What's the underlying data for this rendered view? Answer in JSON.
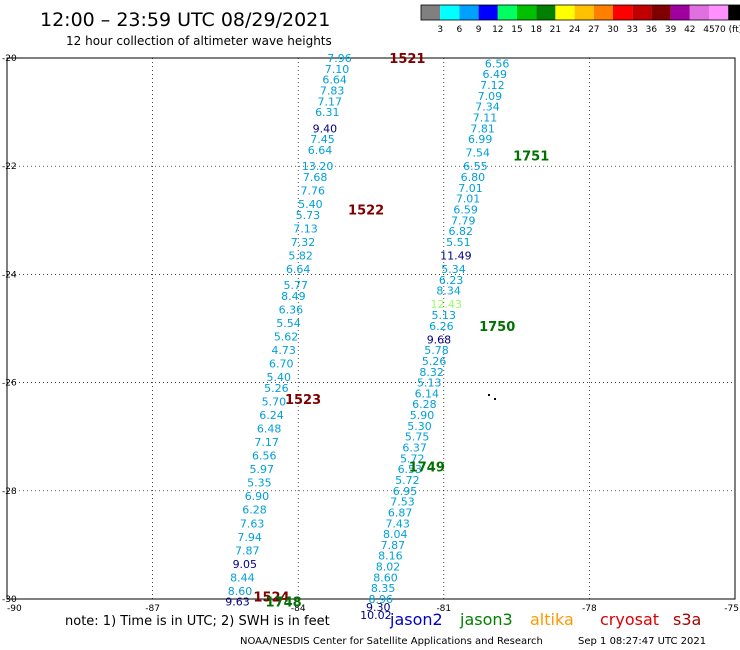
{
  "header": {
    "title": "12:00 – 23:59 UTC 08/29/2021",
    "subtitle": "12 hour collection of altimeter wave heights"
  },
  "colorbar": {
    "labels": [
      "3",
      "6",
      "9",
      "12",
      "15",
      "18",
      "21",
      "24",
      "27",
      "30",
      "33",
      "36",
      "39",
      "42",
      "45",
      "70 (ft)"
    ],
    "colors": [
      "#808080",
      "#00ffff",
      "#00a0ff",
      "#0000ff",
      "#00ff60",
      "#00c000",
      "#008000",
      "#ffff00",
      "#ffc000",
      "#ff8000",
      "#ff0000",
      "#c00000",
      "#800000",
      "#a000a0",
      "#e070e0",
      "#ff90ff",
      "#000000"
    ]
  },
  "footer": {
    "note": "note: 1) Time is in UTC; 2) SWH is in feet",
    "satellites": [
      {
        "name": "jason2",
        "color": "#0000cc"
      },
      {
        "name": "jason3",
        "color": "#008000"
      },
      {
        "name": "altika",
        "color": "#ff9900"
      },
      {
        "name": "cryosat",
        "color": "#dd0000"
      },
      {
        "name": "s3a",
        "color": "#aa0000"
      }
    ],
    "credit": "NOAA/NESDIS Center for Satellite Applications and Research",
    "timestamp": "Sep  1 08:27:47 UTC 2021"
  },
  "chart_data": {
    "type": "scatter",
    "xlim": [
      -90,
      -75
    ],
    "ylim": [
      -30,
      -20
    ],
    "xticks": [
      "-90",
      "-87",
      "-84",
      "-81",
      "-78",
      "-75"
    ],
    "yticks": [
      "-20",
      "-22",
      "-24",
      "-26",
      "-28",
      "-30"
    ],
    "grid": true,
    "track_a": {
      "color": "#00a0d8",
      "points": [
        [
          -83.15,
          -20.0,
          "7.96"
        ],
        [
          -83.2,
          -20.2,
          "7.10"
        ],
        [
          -83.25,
          -20.4,
          "6.64"
        ],
        [
          -83.3,
          -20.6,
          "7.83"
        ],
        [
          -83.35,
          -20.8,
          "7.17"
        ],
        [
          -83.4,
          -21.0,
          "6.31"
        ],
        [
          -83.45,
          -21.3,
          "9.40"
        ],
        [
          -83.5,
          -21.5,
          "7.45"
        ],
        [
          -83.55,
          -21.7,
          "6.64"
        ],
        [
          -83.6,
          -22.0,
          "13.20"
        ],
        [
          -83.65,
          -22.2,
          "7.68"
        ],
        [
          -83.7,
          -22.45,
          "7.76"
        ],
        [
          -83.75,
          -22.7,
          "5.40"
        ],
        [
          -83.8,
          -22.9,
          "5.73"
        ],
        [
          -83.85,
          -23.15,
          "7.13"
        ],
        [
          -83.9,
          -23.4,
          "7.32"
        ],
        [
          -83.95,
          -23.65,
          "5.82"
        ],
        [
          -84.0,
          -23.9,
          "6.64"
        ],
        [
          -84.05,
          -24.2,
          "5.77"
        ],
        [
          -84.1,
          -24.4,
          "8.49"
        ],
        [
          -84.15,
          -24.65,
          "6.36"
        ],
        [
          -84.2,
          -24.9,
          "5.54"
        ],
        [
          -84.25,
          -25.15,
          "5.62"
        ],
        [
          -84.3,
          -25.4,
          "4.73"
        ],
        [
          -84.35,
          -25.65,
          "6.70"
        ],
        [
          -84.4,
          -25.9,
          "5.40"
        ],
        [
          -84.45,
          -26.1,
          "5.26"
        ],
        [
          -84.5,
          -26.35,
          "5.70"
        ],
        [
          -84.55,
          -26.6,
          "6.24"
        ],
        [
          -84.6,
          -26.85,
          "6.48"
        ],
        [
          -84.65,
          -27.1,
          "7.17"
        ],
        [
          -84.7,
          -27.35,
          "6.56"
        ],
        [
          -84.75,
          -27.6,
          "5.97"
        ],
        [
          -84.8,
          -27.85,
          "5.35"
        ],
        [
          -84.85,
          -28.1,
          "6.90"
        ],
        [
          -84.9,
          -28.35,
          "6.28"
        ],
        [
          -84.95,
          -28.6,
          "7.63"
        ],
        [
          -85.0,
          -28.85,
          "7.94"
        ],
        [
          -85.05,
          -29.1,
          "7.87"
        ],
        [
          -85.1,
          -29.35,
          "9.05"
        ],
        [
          -85.15,
          -29.6,
          "8.44"
        ],
        [
          -85.2,
          -29.85,
          "8.60"
        ],
        [
          -85.25,
          -30.05,
          "9.63"
        ]
      ],
      "darkIndex": [
        6,
        39,
        42
      ],
      "labels": [
        {
          "text": "1521",
          "x": -81.75,
          "y": -20.0,
          "color": "#800000"
        },
        {
          "text": "1522",
          "x": -82.6,
          "y": -22.8,
          "color": "#800000"
        },
        {
          "text": "1523",
          "x": -83.9,
          "y": -26.3,
          "color": "#800000"
        },
        {
          "text": "1524",
          "x": -84.55,
          "y": -29.95,
          "color": "#800000"
        }
      ]
    },
    "track_b": {
      "color": "#00a0d8",
      "points": [
        [
          -79.9,
          -20.1,
          "6.56"
        ],
        [
          -79.95,
          -20.3,
          "6.49"
        ],
        [
          -80.0,
          -20.5,
          "7.12"
        ],
        [
          -80.05,
          -20.7,
          "7.09"
        ],
        [
          -80.1,
          -20.9,
          "7.34"
        ],
        [
          -80.15,
          -21.1,
          "7.11"
        ],
        [
          -80.2,
          -21.3,
          "7.81"
        ],
        [
          -80.25,
          -21.5,
          "6.99"
        ],
        [
          -80.3,
          -21.75,
          "7.54"
        ],
        [
          -80.35,
          -22.0,
          "6.55"
        ],
        [
          -80.4,
          -22.2,
          "6.80"
        ],
        [
          -80.45,
          -22.4,
          "7.01"
        ],
        [
          -80.5,
          -22.6,
          "7.01"
        ],
        [
          -80.55,
          -22.8,
          "6.59"
        ],
        [
          -80.6,
          -23.0,
          "7.79"
        ],
        [
          -80.65,
          -23.2,
          "6.82"
        ],
        [
          -80.7,
          -23.4,
          "5.51"
        ],
        [
          -80.75,
          -23.65,
          "11.49"
        ],
        [
          -80.8,
          -23.9,
          "5.34"
        ],
        [
          -80.85,
          -24.1,
          "6.23"
        ],
        [
          -80.9,
          -24.3,
          "8.34"
        ],
        [
          -80.95,
          -24.55,
          "12.43"
        ],
        [
          -81.0,
          -24.75,
          "5.13"
        ],
        [
          -81.05,
          -24.95,
          "6.26"
        ],
        [
          -81.1,
          -25.2,
          "9.68"
        ],
        [
          -81.15,
          -25.4,
          "5.78"
        ],
        [
          -81.2,
          -25.6,
          "5.26"
        ],
        [
          -81.25,
          -25.8,
          "8.32"
        ],
        [
          -81.3,
          -26.0,
          "5.13"
        ],
        [
          -81.35,
          -26.2,
          "6.14"
        ],
        [
          -81.4,
          -26.4,
          "6.28"
        ],
        [
          -81.45,
          -26.6,
          "5.90"
        ],
        [
          -81.5,
          -26.8,
          "5.30"
        ],
        [
          -81.55,
          -27.0,
          "5.75"
        ],
        [
          -81.6,
          -27.2,
          "6.37"
        ],
        [
          -81.65,
          -27.4,
          "5.72"
        ],
        [
          -81.7,
          -27.6,
          "6.53"
        ],
        [
          -81.75,
          -27.8,
          "5.72"
        ],
        [
          -81.8,
          -28.0,
          "6.95"
        ],
        [
          -81.85,
          -28.2,
          "7.53"
        ],
        [
          -81.9,
          -28.4,
          "6.87"
        ],
        [
          -81.95,
          -28.6,
          "7.43"
        ],
        [
          -82.0,
          -28.8,
          "8.04"
        ],
        [
          -82.05,
          -29.0,
          "7.87"
        ],
        [
          -82.1,
          -29.2,
          "8.16"
        ],
        [
          -82.15,
          -29.4,
          "8.02"
        ],
        [
          -82.2,
          -29.6,
          "8.60"
        ],
        [
          -82.25,
          -29.8,
          "8.35"
        ],
        [
          -82.3,
          -30.0,
          "8.96"
        ],
        [
          -82.35,
          -30.15,
          "9.30"
        ],
        [
          -82.4,
          -30.3,
          "10.02"
        ]
      ],
      "darkIndex": [
        17,
        24,
        49,
        50
      ],
      "lightIndex": [
        21
      ],
      "labels": [
        {
          "text": "1751",
          "x": -79.2,
          "y": -21.8,
          "color": "#007000"
        },
        {
          "text": "1750",
          "x": -79.9,
          "y": -24.95,
          "color": "#007000"
        },
        {
          "text": "1749",
          "x": -81.35,
          "y": -27.55,
          "color": "#007000"
        },
        {
          "text": "1748",
          "x": -84.3,
          "y": -30.05,
          "color": "#007000"
        }
      ]
    }
  }
}
